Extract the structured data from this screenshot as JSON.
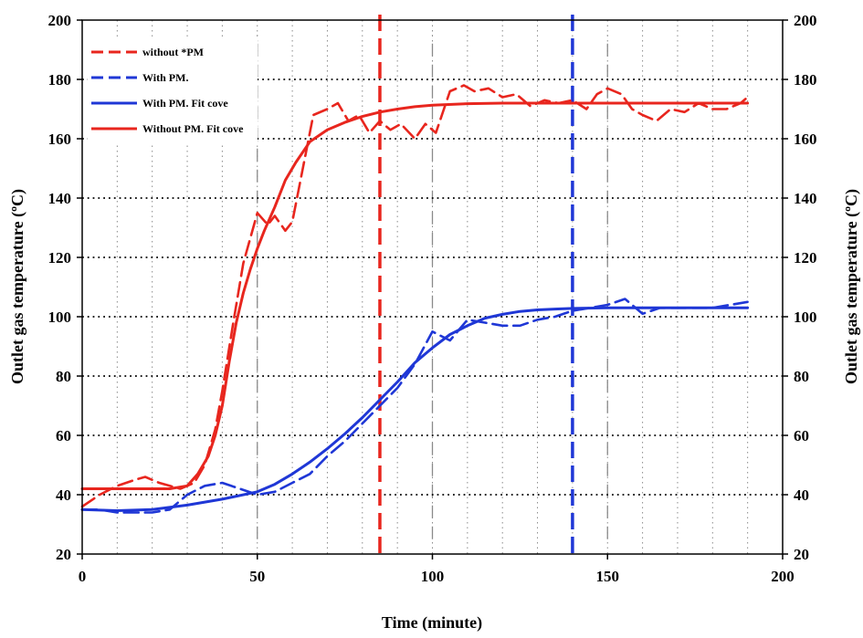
{
  "chart_data": {
    "type": "line",
    "xlabel": "Time (minute)",
    "ylabel": "Outlet gas temperature (ºC)",
    "ylabel_right": "Outlet gas temperature (ºC)",
    "xlim": [
      0,
      200
    ],
    "ylim": [
      20,
      200
    ],
    "x_ticks": [
      "0",
      "50",
      "100",
      "150",
      "200"
    ],
    "y_ticks": [
      "20",
      "40",
      "60",
      "80",
      "100",
      "120",
      "140",
      "160",
      "180",
      "200"
    ],
    "grid": "dotted",
    "legend_position": "top-left",
    "reference_lines": [
      {
        "x": 85,
        "color": "#e8261e"
      },
      {
        "x": 140,
        "color": "#1f37d6"
      }
    ],
    "series": [
      {
        "name": "without *PM",
        "color": "#e8261e",
        "style": "dashed",
        "x": [
          0,
          5,
          10,
          15,
          18,
          22,
          25,
          28,
          32,
          35,
          38,
          40,
          43,
          46,
          50,
          53,
          55,
          58,
          60,
          63,
          66,
          70,
          73,
          76,
          79,
          82,
          85,
          88,
          91,
          95,
          98,
          101,
          105,
          109,
          112,
          116,
          120,
          124,
          128,
          132,
          136,
          140,
          144,
          147,
          150,
          154,
          157,
          160,
          164,
          168,
          172,
          176,
          180,
          184,
          188,
          190
        ],
        "y": [
          36,
          40,
          43,
          45,
          46,
          44,
          43,
          42,
          44,
          50,
          62,
          75,
          97,
          118,
          135,
          131,
          134,
          129,
          132,
          150,
          168,
          170,
          172,
          166,
          168,
          162,
          166,
          163,
          165,
          160,
          165,
          162,
          176,
          178,
          176,
          177,
          174,
          175,
          171,
          173,
          172,
          173,
          170,
          175,
          177,
          175,
          170,
          168,
          166,
          170,
          169,
          172,
          170,
          170,
          172,
          174
        ]
      },
      {
        "name": "With PM.",
        "color": "#1f37d6",
        "style": "dashed",
        "x": [
          0,
          5,
          10,
          15,
          20,
          25,
          30,
          35,
          40,
          45,
          50,
          55,
          60,
          65,
          70,
          75,
          80,
          85,
          90,
          95,
          100,
          105,
          110,
          115,
          120,
          125,
          130,
          135,
          140,
          145,
          150,
          155,
          160,
          165,
          170,
          175,
          180,
          185,
          190
        ],
        "y": [
          35,
          35,
          34,
          34,
          34,
          35,
          40,
          43,
          44,
          42,
          40,
          41,
          44,
          47,
          53,
          58,
          64,
          70,
          76,
          84,
          95,
          92,
          99,
          98,
          97,
          97,
          99,
          100,
          102,
          103,
          104,
          106,
          101,
          103,
          103,
          103,
          103,
          104,
          105
        ]
      },
      {
        "name": "With PM. Fit cove",
        "color": "#1f37d6",
        "style": "solid",
        "x": [
          0,
          10,
          20,
          30,
          40,
          50,
          55,
          60,
          65,
          70,
          75,
          80,
          85,
          90,
          95,
          100,
          105,
          110,
          115,
          120,
          125,
          130,
          135,
          140,
          150,
          160,
          170,
          180,
          190
        ],
        "y": [
          35,
          34.6,
          35,
          36.5,
          38.5,
          41,
          43.5,
          47,
          51,
          55.5,
          60.5,
          66,
          72,
          78,
          84.5,
          89.5,
          94,
          97,
          99.5,
          100.8,
          101.8,
          102.3,
          102.6,
          102.8,
          103,
          103,
          103,
          103,
          103
        ]
      },
      {
        "name": "Without PM. Fit cove",
        "color": "#e8261e",
        "style": "solid",
        "x": [
          0,
          10,
          20,
          25,
          30,
          33,
          36,
          38,
          40,
          42,
          44,
          46,
          48,
          50,
          52,
          55,
          58,
          61,
          65,
          70,
          75,
          80,
          85,
          90,
          95,
          100,
          110,
          120,
          130,
          140,
          150,
          160,
          170,
          180,
          190
        ],
        "y": [
          42,
          42,
          42,
          42,
          43,
          47,
          53,
          60,
          70,
          85,
          98,
          108,
          116,
          123,
          129,
          137,
          146,
          152,
          159,
          163,
          165.5,
          167.5,
          169,
          170,
          170.8,
          171.3,
          171.8,
          172,
          172,
          172,
          172,
          172,
          172,
          172,
          172
        ]
      }
    ]
  }
}
